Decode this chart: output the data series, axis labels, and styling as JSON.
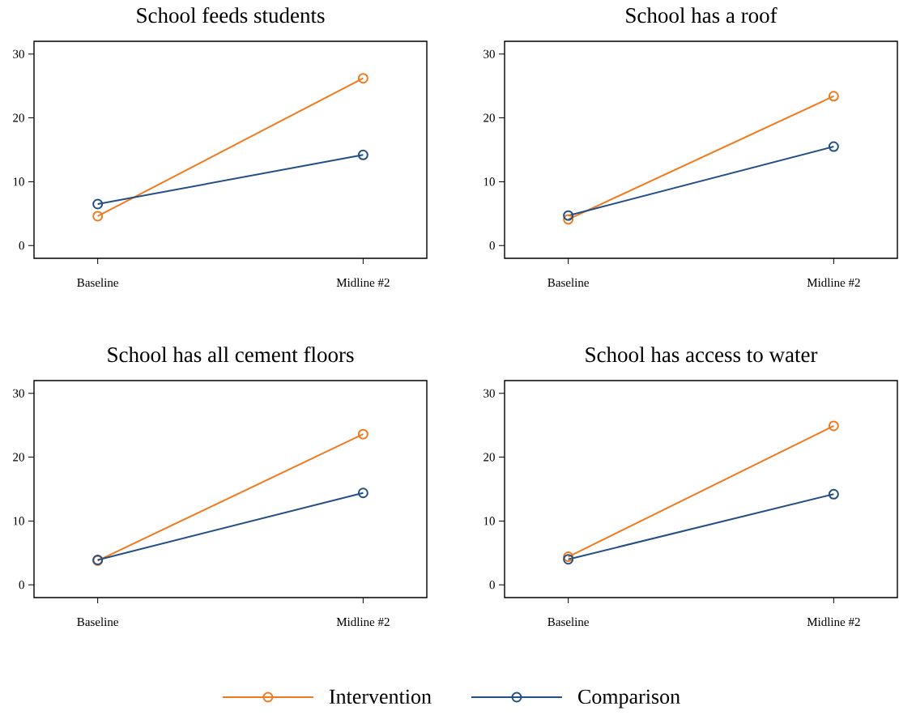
{
  "chart_data": [
    {
      "type": "line",
      "title": "School feeds students",
      "categories": [
        "Baseline",
        "Midline #2"
      ],
      "series": [
        {
          "color": "#f07a1d",
          "values": [
            4.6,
            26.2
          ]
        },
        {
          "color": "#234f87",
          "values": [
            6.5,
            14.2
          ]
        }
      ],
      "ylim": [
        -2,
        32
      ],
      "yticks": [
        0,
        10,
        20,
        30
      ],
      "marker": "circle"
    },
    {
      "type": "line",
      "title": "School has a roof",
      "categories": [
        "Baseline",
        "Midline #2"
      ],
      "series": [
        {
          "color": "#f07a1d",
          "values": [
            4.1,
            23.4
          ]
        },
        {
          "color": "#234f87",
          "values": [
            4.7,
            15.5
          ]
        }
      ],
      "ylim": [
        -2,
        32
      ],
      "yticks": [
        0,
        10,
        20,
        30
      ],
      "marker": "circle"
    },
    {
      "type": "line",
      "title": "School has all cement floors",
      "categories": [
        "Baseline",
        "Midline #2"
      ],
      "series": [
        {
          "color": "#f07a1d",
          "values": [
            3.8,
            23.6
          ]
        },
        {
          "color": "#234f87",
          "values": [
            3.9,
            14.4
          ]
        }
      ],
      "ylim": [
        -2,
        32
      ],
      "yticks": [
        0,
        10,
        20,
        30
      ],
      "marker": "circle"
    },
    {
      "type": "line",
      "title": "School has access to water",
      "categories": [
        "Baseline",
        "Midline #2"
      ],
      "series": [
        {
          "name": "Intervention",
          "color": "#f07a1d",
          "values": [
            4.4,
            24.9
          ]
        },
        {
          "name": "Comparison",
          "color": "#234f87",
          "values": [
            4.0,
            14.2
          ]
        }
      ],
      "ylim": [
        -2,
        32
      ],
      "yticks": [
        0,
        10,
        20,
        30
      ],
      "marker": "circle",
      "legend": "bottom"
    }
  ]
}
